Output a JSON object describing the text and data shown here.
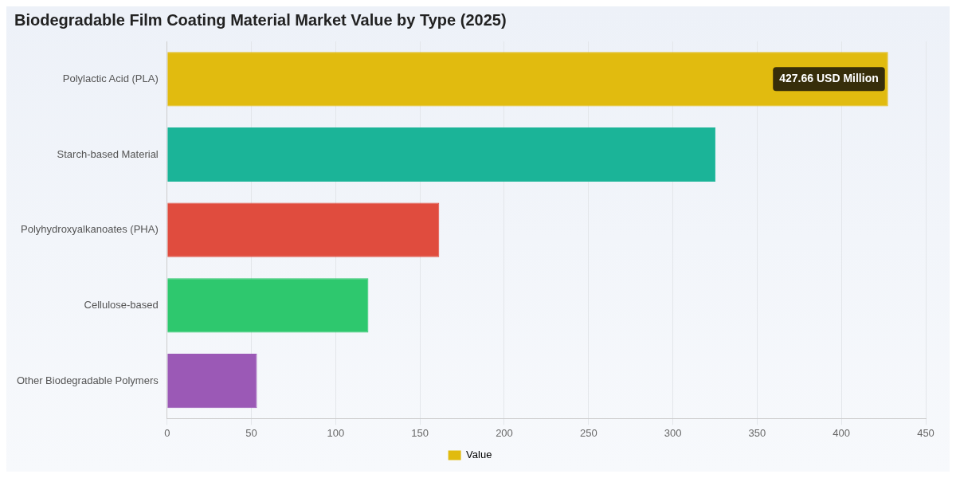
{
  "chart_data": {
    "type": "bar",
    "orientation": "horizontal",
    "title": "Biodegradable Film Coating Material Market Value by Type (2025)",
    "categories": [
      "Polylactic Acid (PLA)",
      "Starch-based Material",
      "Polyhydroxyalkanoates (PHA)",
      "Cellulose-based",
      "Other Biodegradable Polymers"
    ],
    "series": [
      {
        "name": "Value",
        "color": "#e1bb0f",
        "colors": [
          "#e1bb0f",
          "#1bb498",
          "#e04c3e",
          "#2ec86e",
          "#9b59b6"
        ],
        "values": [
          427.66,
          325.3,
          161.4,
          119.4,
          53.3
        ],
        "value_labels": [
          "427.66 USD Million",
          null,
          null,
          null,
          null
        ]
      }
    ],
    "xlim": [
      0,
      450
    ],
    "xticks": [
      0,
      50,
      100,
      150,
      200,
      250,
      300,
      350,
      400,
      450
    ],
    "grid": "x",
    "legend": "bottom"
  }
}
